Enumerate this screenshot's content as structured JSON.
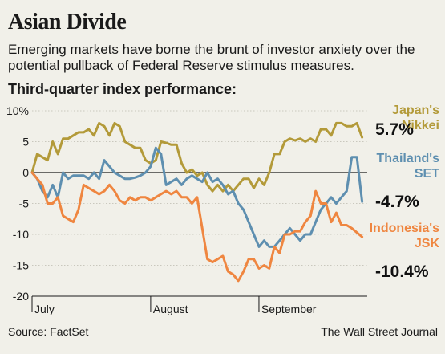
{
  "header": {
    "title": "Asian Divide",
    "subtitle": "Emerging markets have borne the brunt of investor anxiety over the potential pullback of Federal Reserve stimulus measures.",
    "chart_label": "Third-quarter index performance:"
  },
  "footer": {
    "source": "Source: FactSet",
    "credit": "The Wall Street Journal"
  },
  "colors": {
    "background": "#f1f0e9",
    "nikkei": "#b39a39",
    "set": "#5e8fb0",
    "jsk": "#ef8640",
    "gridline": "#c9c7bd",
    "zeroline": "#1a1a1a"
  },
  "chart_data": {
    "type": "line",
    "title": "Third-quarter index performance:",
    "ylim": [
      -20,
      10
    ],
    "yticks": [
      10,
      5,
      0,
      -5,
      -10,
      -15,
      -20
    ],
    "ytick_labels": [
      "10%",
      "5",
      "0",
      "-5",
      "-10",
      "-15",
      "-20"
    ],
    "xlim": [
      0,
      65
    ],
    "x_month_labels": [
      {
        "label": "July",
        "x": 0
      },
      {
        "label": "August",
        "x": 23
      },
      {
        "label": "September",
        "x": 44
      }
    ],
    "grid": "horizontal",
    "series": [
      {
        "name": "Japan's Nikkei",
        "end_label": "5.7%",
        "color_key": "nikkei",
        "values": [
          0,
          3,
          2.5,
          2,
          5,
          3,
          5.5,
          5.5,
          6,
          6.5,
          6.5,
          7,
          6,
          8,
          7.5,
          6,
          8,
          7.5,
          5,
          4.5,
          4,
          4,
          2,
          1.5,
          2,
          5,
          4.8,
          4.5,
          4.5,
          1.5,
          0,
          0.5,
          -0.5,
          0,
          -2,
          -3,
          -2,
          -3,
          -2,
          -3,
          -2,
          -1,
          -1,
          -2.5,
          -1,
          -2,
          0,
          3,
          3,
          5,
          5.5,
          5.2,
          5.5,
          5,
          5.5,
          5,
          7,
          7,
          6,
          8,
          8,
          7.5,
          7.5,
          8,
          5.7
        ],
        "x_values": [
          0,
          1,
          2,
          3,
          4,
          5,
          6,
          7,
          8,
          9,
          10,
          11,
          12,
          13,
          14,
          15,
          16,
          17,
          18,
          19,
          20,
          21,
          22,
          23,
          24,
          25,
          26,
          27,
          28,
          29,
          30,
          31,
          32,
          33,
          34,
          35,
          36,
          37,
          38,
          39,
          40,
          41,
          42,
          43,
          44,
          45,
          46,
          47,
          48,
          49,
          50,
          51,
          52,
          53,
          54,
          55,
          56,
          57,
          58,
          59,
          60,
          61,
          62,
          63,
          64
        ]
      },
      {
        "name": "Thailand's SET",
        "end_label": "-4.7%",
        "color_key": "set",
        "values": [
          0,
          -1,
          -3,
          -4,
          -2,
          -4,
          0,
          -1,
          -0.5,
          -0.5,
          -0.5,
          -1,
          0,
          -1,
          2,
          1,
          0,
          -0.5,
          -1,
          -1,
          -0.8,
          -0.5,
          0,
          1,
          4,
          3,
          -2,
          -1.5,
          -1,
          -2,
          -1,
          -0.5,
          -1,
          -1.5,
          0,
          -1.5,
          -1,
          -2,
          -3.5,
          -3,
          -5,
          -6,
          -8,
          -10,
          -12,
          -11,
          -12,
          -12,
          -11,
          -10,
          -9,
          -10,
          -11,
          -10,
          -10,
          -8,
          -6,
          -5,
          -4,
          -5,
          -4,
          -3,
          2.5,
          2.5,
          -4.7
        ],
        "x_values": [
          0,
          1,
          2,
          3,
          4,
          5,
          6,
          7,
          8,
          9,
          10,
          11,
          12,
          13,
          14,
          15,
          16,
          17,
          18,
          19,
          20,
          21,
          22,
          23,
          24,
          25,
          26,
          27,
          28,
          29,
          30,
          31,
          32,
          33,
          34,
          35,
          36,
          37,
          38,
          39,
          40,
          41,
          42,
          43,
          44,
          45,
          46,
          47,
          48,
          49,
          50,
          51,
          52,
          53,
          54,
          55,
          56,
          57,
          58,
          59,
          60,
          61,
          62,
          63,
          64
        ]
      },
      {
        "name": "Indonesia's JSK",
        "end_label": "-10.4%",
        "color_key": "jsk",
        "values": [
          0,
          -1,
          -2,
          -5,
          -5,
          -4,
          -7,
          -7.5,
          -8,
          -6,
          -2,
          -2.5,
          -3,
          -3.5,
          -3,
          -2,
          -3,
          -4.5,
          -5,
          -4,
          -4.5,
          -4,
          -4,
          -4.5,
          -4,
          -3.5,
          -3,
          -3.5,
          -3,
          -4,
          -4,
          -5,
          -4,
          -9,
          -14,
          -14.5,
          -14,
          -13.5,
          -16,
          -16.5,
          -17.5,
          -16,
          -14,
          -14,
          -15.5,
          -15,
          -15.5,
          -12,
          -13,
          -10,
          -10,
          -9.5,
          -9.5,
          -8,
          -7,
          -3,
          -5,
          -5,
          -8,
          -6.5,
          -8.5,
          -8.5,
          -9,
          -10.4
        ],
        "x_values": [
          0,
          1,
          2,
          3,
          4,
          5,
          6,
          7,
          8,
          9,
          10,
          11,
          12,
          13,
          14,
          15,
          16,
          17,
          18,
          19,
          20,
          21,
          22,
          23,
          24,
          25,
          26,
          27,
          28,
          29,
          30,
          31,
          32,
          33,
          34,
          35,
          36,
          37,
          38,
          39,
          40,
          41,
          42,
          43,
          44,
          45,
          46,
          47,
          48,
          49,
          50,
          51,
          52,
          53,
          54,
          55,
          56,
          57,
          58,
          59,
          60,
          61,
          62,
          64
        ]
      }
    ]
  }
}
